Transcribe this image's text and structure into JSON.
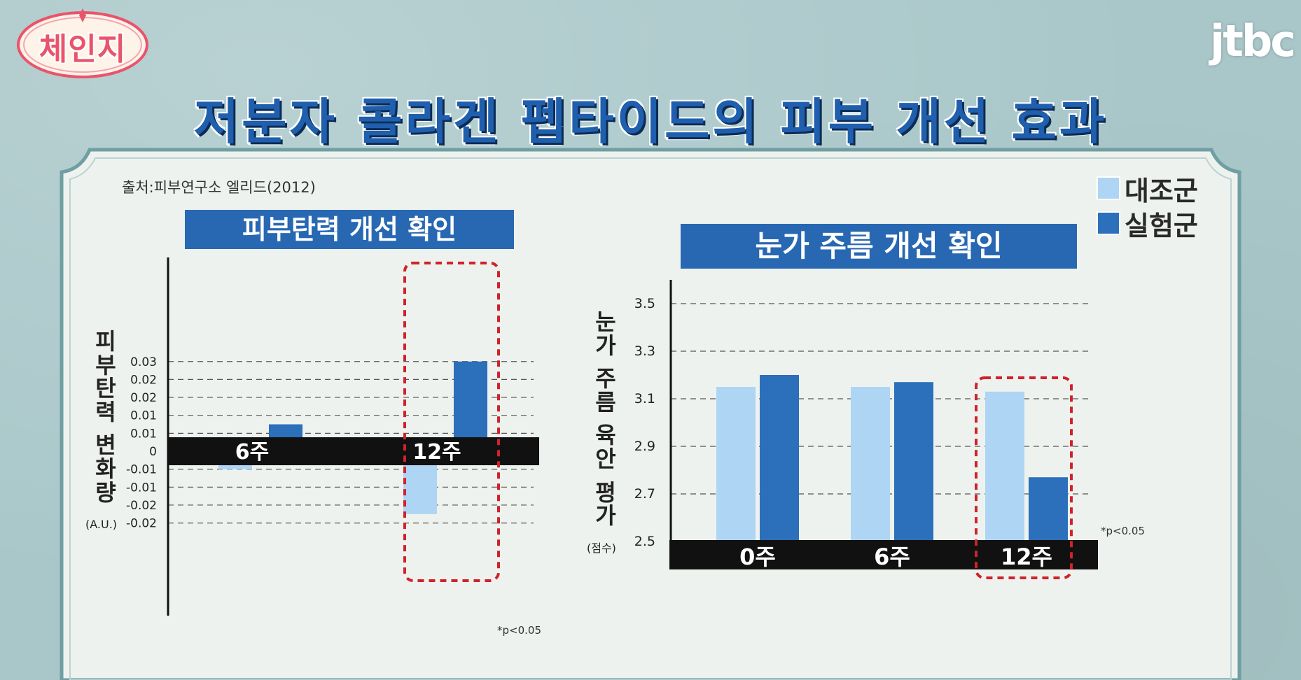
{
  "program_logo": "체인지",
  "broadcaster": "jtbc",
  "title": "저분자 콜라겐 펩타이드의 피부 개선 효과",
  "source": "출처:피부연구소 엘리드(2012)",
  "legend": [
    {
      "label": "대조군",
      "color": "#aed5f4"
    },
    {
      "label": "실험군",
      "color": "#2c6fba"
    }
  ],
  "colors": {
    "control": "#aed5f4",
    "experiment": "#2c6fba",
    "title_bg": "#2868b3",
    "highlight": "#d0222a"
  },
  "chart_data": [
    {
      "type": "bar",
      "title": "피부탄력 개선 확인",
      "ylabel": "피부탄력 변화량",
      "yunit": "(A.U.)",
      "categories": [
        "6주",
        "12주"
      ],
      "series": [
        {
          "name": "대조군",
          "values": [
            -0.005,
            -0.0175
          ]
        },
        {
          "name": "실험군",
          "values": [
            0.0075,
            0.025
          ]
        }
      ],
      "yticks": [
        "0.03",
        "0.02",
        "0.02",
        "0.01",
        "0.01",
        "0",
        "-0.01",
        "-0.01",
        "-0.02",
        "-0.02"
      ],
      "tick_values": [
        0.025,
        0.02,
        0.015,
        0.01,
        0.005,
        0,
        -0.005,
        -0.01,
        -0.015,
        -0.02
      ],
      "ylim": [
        -0.02,
        0.025
      ],
      "grid": true,
      "highlight_category": "12주",
      "note": "*p<0.05"
    },
    {
      "type": "bar",
      "title": "눈가 주름 개선 확인",
      "ylabel": "눈가 주름 육안 평가",
      "yunit": "(점수)",
      "categories": [
        "0주",
        "6주",
        "12주"
      ],
      "series": [
        {
          "name": "대조군",
          "values": [
            3.15,
            3.15,
            3.13
          ]
        },
        {
          "name": "실험군",
          "values": [
            3.2,
            3.17,
            2.77
          ]
        }
      ],
      "yticks": [
        "3.5",
        "3.3",
        "3.1",
        "2.9",
        "2.7",
        "2.5"
      ],
      "tick_values": [
        3.5,
        3.3,
        3.1,
        2.9,
        2.7,
        2.5
      ],
      "ylim": [
        2.5,
        3.5
      ],
      "grid": true,
      "highlight_category": "12주",
      "note": "*p<0.05"
    }
  ]
}
